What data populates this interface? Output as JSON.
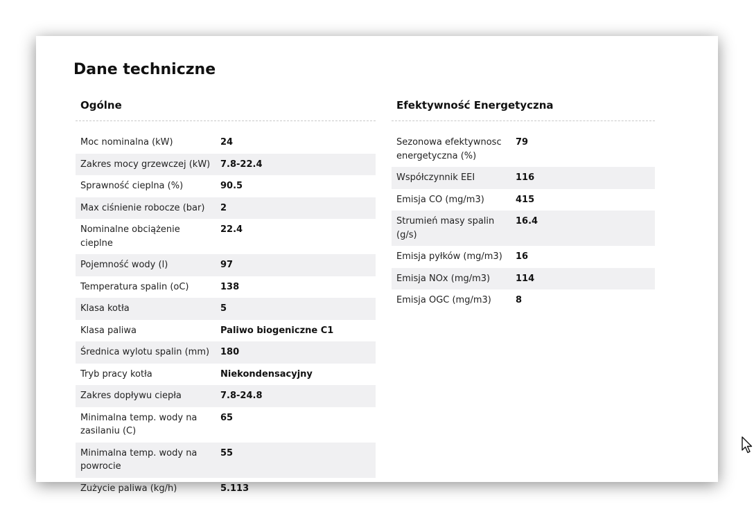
{
  "page_title": "Dane techniczne",
  "general": {
    "title": "Ogólne",
    "rows": [
      {
        "label": "Moc nominalna (kW)",
        "value": "24"
      },
      {
        "label": "Zakres mocy grzewczej (kW)",
        "value": "7.8-22.4"
      },
      {
        "label": "Sprawność cieplna (%)",
        "value": "90.5"
      },
      {
        "label": "Max ciśnienie robocze (bar)",
        "value": "2"
      },
      {
        "label": "Nominalne obciążenie cieplne",
        "value": "22.4"
      },
      {
        "label": "Pojemność wody (l)",
        "value": "97"
      },
      {
        "label": "Temperatura spalin (oC)",
        "value": "138"
      },
      {
        "label": "Klasa kotła",
        "value": "5"
      },
      {
        "label": "Klasa paliwa",
        "value": "Paliwo biogeniczne C1"
      },
      {
        "label": "Średnica wylotu spalin (mm)",
        "value": "180"
      },
      {
        "label": "Tryb pracy kotła",
        "value": "Niekondensacyjny"
      },
      {
        "label": "Zakres dopływu ciepła",
        "value": "7.8-24.8"
      },
      {
        "label": "Minimalna temp. wody na zasilaniu (C)",
        "value": "65"
      },
      {
        "label": "Minimalna temp. wody na powrocie",
        "value": "55"
      },
      {
        "label": "Zużycie paliwa (kg/h)",
        "value": "5.113"
      }
    ]
  },
  "efficiency": {
    "title": "Efektywność Energetyczna",
    "rows": [
      {
        "label": "Sezonowa efektywnosc energetyczna (%)",
        "value": "79"
      },
      {
        "label": "Współczynnik EEI",
        "value": "116"
      },
      {
        "label": "Emisja CO (mg/m3)",
        "value": "415"
      },
      {
        "label": "Strumień masy spalin (g/s)",
        "value": "16.4"
      },
      {
        "label": "Emisja pyłków (mg/m3)",
        "value": "16"
      },
      {
        "label": "Emisja NOx (mg/m3)",
        "value": "114"
      },
      {
        "label": "Emisja OGC (mg/m3)",
        "value": "8"
      }
    ]
  },
  "icons": {
    "cursor": "mouse-pointer-icon"
  }
}
